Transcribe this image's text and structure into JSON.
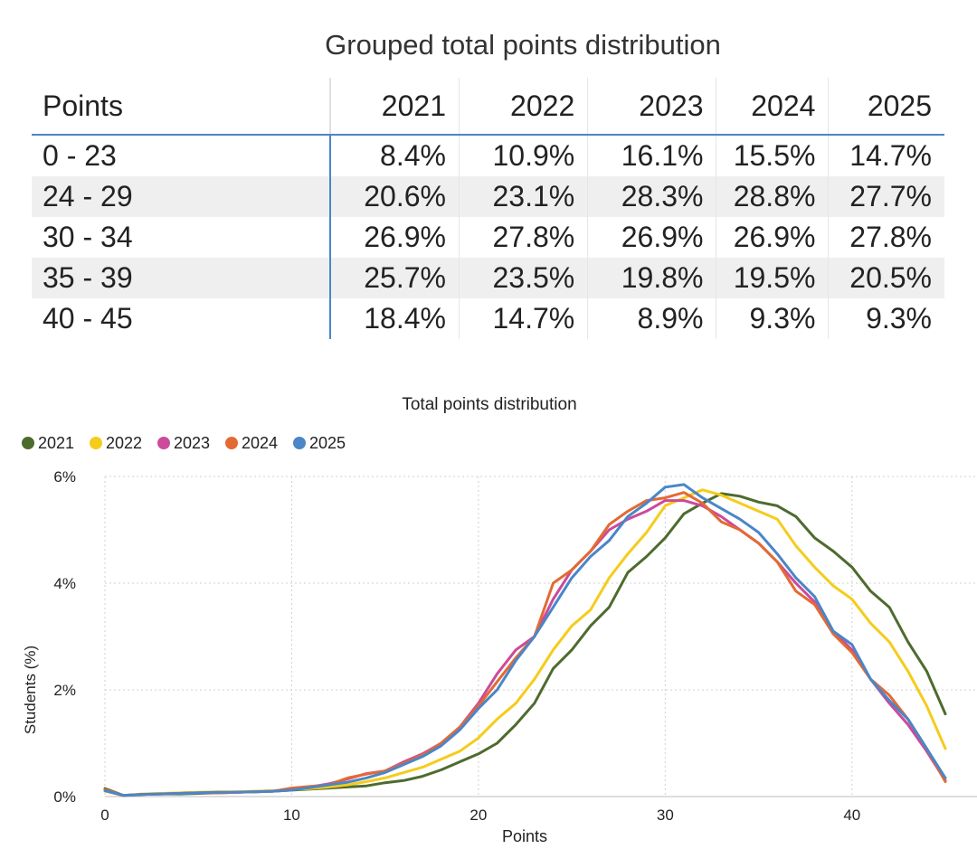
{
  "table": {
    "title": "Grouped total points distribution",
    "header": [
      "Points",
      "2021",
      "2022",
      "2023",
      "2024",
      "2025"
    ],
    "rows": [
      [
        "0 - 23",
        "8.4%",
        "10.9%",
        "16.1%",
        "15.5%",
        "14.7%"
      ],
      [
        "24 - 29",
        "20.6%",
        "23.1%",
        "28.3%",
        "28.8%",
        "27.7%"
      ],
      [
        "30 - 34",
        "26.9%",
        "27.8%",
        "26.9%",
        "26.9%",
        "27.8%"
      ],
      [
        "35 - 39",
        "25.7%",
        "23.5%",
        "19.8%",
        "19.5%",
        "20.5%"
      ],
      [
        "40 - 45",
        "18.4%",
        "14.7%",
        "8.9%",
        "9.3%",
        "9.3%"
      ]
    ]
  },
  "chart_data": {
    "type": "line",
    "title": "Total points distribution",
    "xlabel": "Points",
    "ylabel": "Students (%)",
    "xlim": [
      0,
      45
    ],
    "ylim": [
      0,
      6
    ],
    "xticks": [
      0,
      10,
      20,
      30,
      40
    ],
    "yticks": [
      0,
      2,
      4,
      6
    ],
    "ytick_labels": [
      "0%",
      "2%",
      "4%",
      "6%"
    ],
    "grid": true,
    "legend_position": "top-left",
    "x": [
      0,
      1,
      2,
      3,
      4,
      5,
      6,
      7,
      8,
      9,
      10,
      11,
      12,
      13,
      14,
      15,
      16,
      17,
      18,
      19,
      20,
      21,
      22,
      23,
      24,
      25,
      26,
      27,
      28,
      29,
      30,
      31,
      32,
      33,
      34,
      35,
      36,
      37,
      38,
      39,
      40,
      41,
      42,
      43,
      44,
      45
    ],
    "series": [
      {
        "name": "2021",
        "color": "#4e6b2e",
        "values": [
          0.15,
          0.02,
          0.04,
          0.05,
          0.05,
          0.06,
          0.07,
          0.08,
          0.09,
          0.1,
          0.12,
          0.14,
          0.16,
          0.18,
          0.2,
          0.26,
          0.3,
          0.38,
          0.5,
          0.65,
          0.8,
          1.0,
          1.35,
          1.75,
          2.4,
          2.75,
          3.2,
          3.55,
          4.2,
          4.5,
          4.85,
          5.3,
          5.5,
          5.68,
          5.63,
          5.52,
          5.45,
          5.25,
          4.85,
          4.6,
          4.3,
          3.85,
          3.55,
          2.9,
          2.35,
          1.55
        ]
      },
      {
        "name": "2022",
        "color": "#f5cc1b",
        "values": [
          0.1,
          0.02,
          0.05,
          0.06,
          0.07,
          0.08,
          0.09,
          0.09,
          0.1,
          0.11,
          0.13,
          0.15,
          0.18,
          0.22,
          0.28,
          0.35,
          0.45,
          0.55,
          0.7,
          0.85,
          1.1,
          1.45,
          1.75,
          2.2,
          2.75,
          3.2,
          3.5,
          4.1,
          4.55,
          4.95,
          5.45,
          5.6,
          5.75,
          5.65,
          5.5,
          5.35,
          5.2,
          4.7,
          4.3,
          3.95,
          3.7,
          3.25,
          2.9,
          2.35,
          1.7,
          0.9
        ]
      },
      {
        "name": "2023",
        "color": "#cc4a9a",
        "values": [
          0.12,
          0.02,
          0.04,
          0.05,
          0.06,
          0.07,
          0.07,
          0.08,
          0.09,
          0.1,
          0.13,
          0.18,
          0.24,
          0.33,
          0.43,
          0.48,
          0.65,
          0.8,
          1.0,
          1.3,
          1.75,
          2.3,
          2.75,
          3.0,
          3.7,
          4.25,
          4.6,
          5.0,
          5.2,
          5.35,
          5.55,
          5.55,
          5.45,
          5.25,
          5.0,
          4.75,
          4.4,
          4.0,
          3.65,
          3.1,
          2.75,
          2.2,
          1.75,
          1.35,
          0.85,
          0.3
        ]
      },
      {
        "name": "2024",
        "color": "#e36a33",
        "values": [
          0.13,
          0.02,
          0.04,
          0.05,
          0.06,
          0.07,
          0.07,
          0.08,
          0.09,
          0.1,
          0.16,
          0.19,
          0.22,
          0.35,
          0.42,
          0.48,
          0.62,
          0.78,
          1.0,
          1.3,
          1.7,
          2.15,
          2.6,
          3.0,
          4.0,
          4.25,
          4.6,
          5.1,
          5.35,
          5.55,
          5.6,
          5.7,
          5.5,
          5.15,
          5.0,
          4.75,
          4.4,
          3.85,
          3.6,
          3.05,
          2.7,
          2.2,
          1.9,
          1.45,
          0.9,
          0.28
        ]
      },
      {
        "name": "2025",
        "color": "#4a86c8",
        "values": [
          0.11,
          0.02,
          0.04,
          0.05,
          0.06,
          0.07,
          0.08,
          0.08,
          0.09,
          0.1,
          0.12,
          0.17,
          0.22,
          0.27,
          0.35,
          0.45,
          0.6,
          0.75,
          0.95,
          1.25,
          1.65,
          2.0,
          2.55,
          3.0,
          3.55,
          4.1,
          4.5,
          4.8,
          5.25,
          5.5,
          5.8,
          5.85,
          5.6,
          5.4,
          5.2,
          4.95,
          4.55,
          4.1,
          3.75,
          3.1,
          2.85,
          2.2,
          1.8,
          1.45,
          0.9,
          0.35
        ]
      }
    ]
  }
}
